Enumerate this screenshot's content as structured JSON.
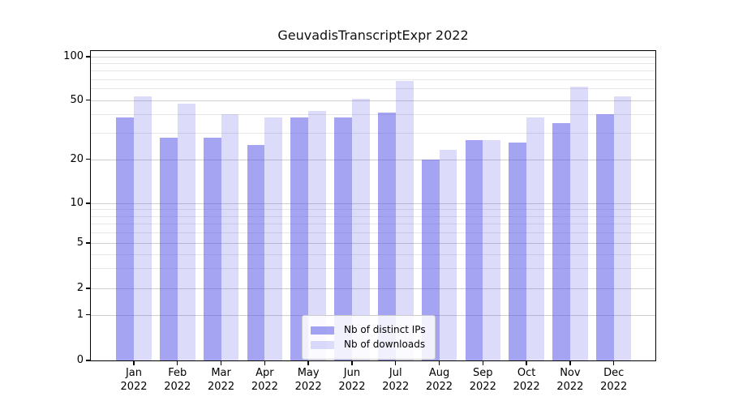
{
  "title": "GeuvadisTranscriptExpr 2022",
  "legend": {
    "items": [
      {
        "label": "Nb of distinct IPs"
      },
      {
        "label": "Nb of downloads"
      }
    ]
  },
  "colors": {
    "bar_distinct_ips": "rgba(80,80,230,0.52)",
    "bar_downloads": "rgba(80,80,230,0.20)",
    "major_gridline": "#cfcfcf",
    "minor_gridline": "#e7e7e7",
    "axis": "#000000"
  },
  "axes": {
    "y_tick_labels": [
      "100",
      "50",
      "20",
      "10",
      "5",
      "2",
      "1",
      "0"
    ],
    "x_tick_labels": [
      "Jan 2022",
      "Feb 2022",
      "Mar 2022",
      "Apr 2022",
      "May 2022",
      "Jun 2022",
      "Jul 2022",
      "Aug 2022",
      "Sep 2022",
      "Oct 2022",
      "Nov 2022",
      "Dec 2022"
    ]
  },
  "chart_data": {
    "type": "bar",
    "title": "GeuvadisTranscriptExpr 2022",
    "categories": [
      "Jan 2022",
      "Feb 2022",
      "Mar 2022",
      "Apr 2022",
      "May 2022",
      "Jun 2022",
      "Jul 2022",
      "Aug 2022",
      "Sep 2022",
      "Oct 2022",
      "Nov 2022",
      "Dec 2022"
    ],
    "series": [
      {
        "name": "Nb of distinct IPs",
        "values": [
          38,
          28,
          28,
          25,
          38,
          38,
          41,
          20,
          27,
          26,
          35,
          40
        ]
      },
      {
        "name": "Nb of downloads",
        "values": [
          53,
          47,
          40,
          38,
          42,
          51,
          68,
          23,
          27,
          38,
          62,
          53
        ]
      }
    ],
    "yscale": "log-like",
    "yticks": [
      0,
      1,
      2,
      5,
      10,
      20,
      50,
      100
    ],
    "minor_gridline_values": [
      3,
      4,
      6,
      7,
      8,
      9,
      30,
      40,
      60,
      70,
      80,
      90
    ],
    "ylim": [
      0,
      100
    ],
    "grid": true,
    "legend_position": "lower center"
  }
}
